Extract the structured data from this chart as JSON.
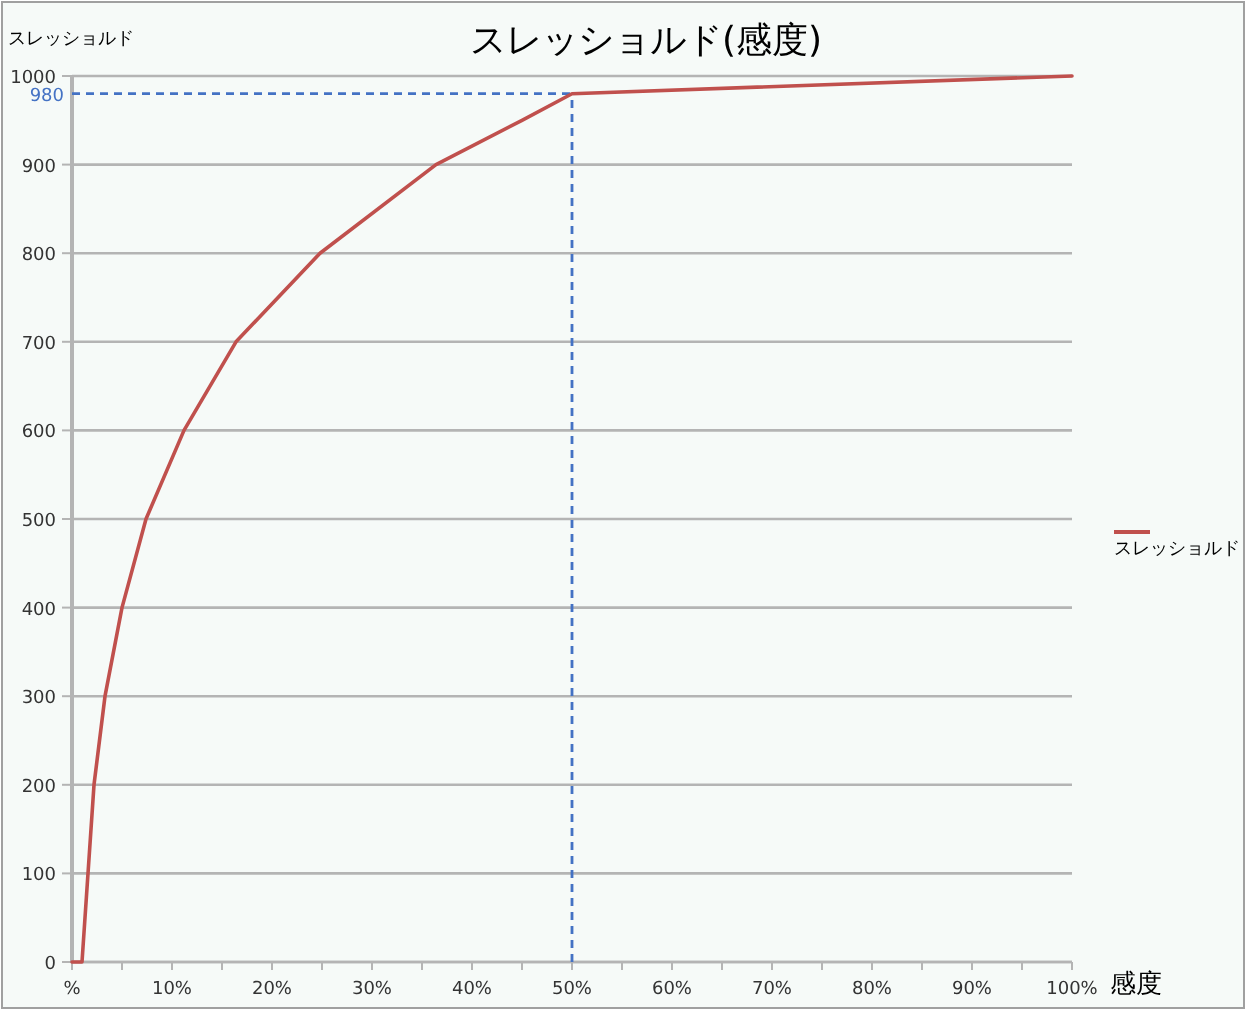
{
  "chart_data": {
    "type": "line",
    "title": "スレッショルド(感度)",
    "xlabel": "感度",
    "ylabel": "スレッショルド",
    "x": [
      0,
      1.0,
      1.6,
      2.2,
      3.3,
      5.0,
      7.4,
      11.2,
      16.4,
      24.8,
      36.4,
      45,
      50,
      100
    ],
    "series": [
      {
        "name": "スレッショルド",
        "color": "#c0504d",
        "values": [
          0,
          0,
          100,
          200,
          300,
          400,
          500,
          600,
          700,
          800,
          900,
          950,
          980,
          1000
        ]
      }
    ],
    "xlim": [
      0,
      100
    ],
    "xticks": [
      {
        "value": 0,
        "label": "%"
      },
      {
        "value": 5,
        "label": null
      },
      {
        "value": 10,
        "label": "10%"
      },
      {
        "value": 15,
        "label": null
      },
      {
        "value": 20,
        "label": "20%"
      },
      {
        "value": 25,
        "label": null
      },
      {
        "value": 30,
        "label": "30%"
      },
      {
        "value": 35,
        "label": null
      },
      {
        "value": 40,
        "label": "40%"
      },
      {
        "value": 45,
        "label": null
      },
      {
        "value": 50,
        "label": "50%"
      },
      {
        "value": 55,
        "label": null
      },
      {
        "value": 60,
        "label": "60%"
      },
      {
        "value": 65,
        "label": null
      },
      {
        "value": 70,
        "label": "70%"
      },
      {
        "value": 75,
        "label": null
      },
      {
        "value": 80,
        "label": "80%"
      },
      {
        "value": 85,
        "label": null
      },
      {
        "value": 90,
        "label": "90%"
      },
      {
        "value": 95,
        "label": null
      },
      {
        "value": 100,
        "label": "100%"
      }
    ],
    "ylim": [
      0,
      1000
    ],
    "yticks": [
      0,
      100,
      200,
      300,
      400,
      500,
      600,
      700,
      800,
      900,
      1000
    ],
    "ref_lines": [
      {
        "axis": "x",
        "value": 50,
        "label": null,
        "color": "#4472c4",
        "line_style": "dashed"
      },
      {
        "axis": "y",
        "value": 980,
        "label": "980",
        "color": "#4472c4",
        "line_style": "dashed"
      }
    ],
    "grid": "y",
    "legend": "right",
    "marker": "none",
    "line_style": "solid"
  }
}
